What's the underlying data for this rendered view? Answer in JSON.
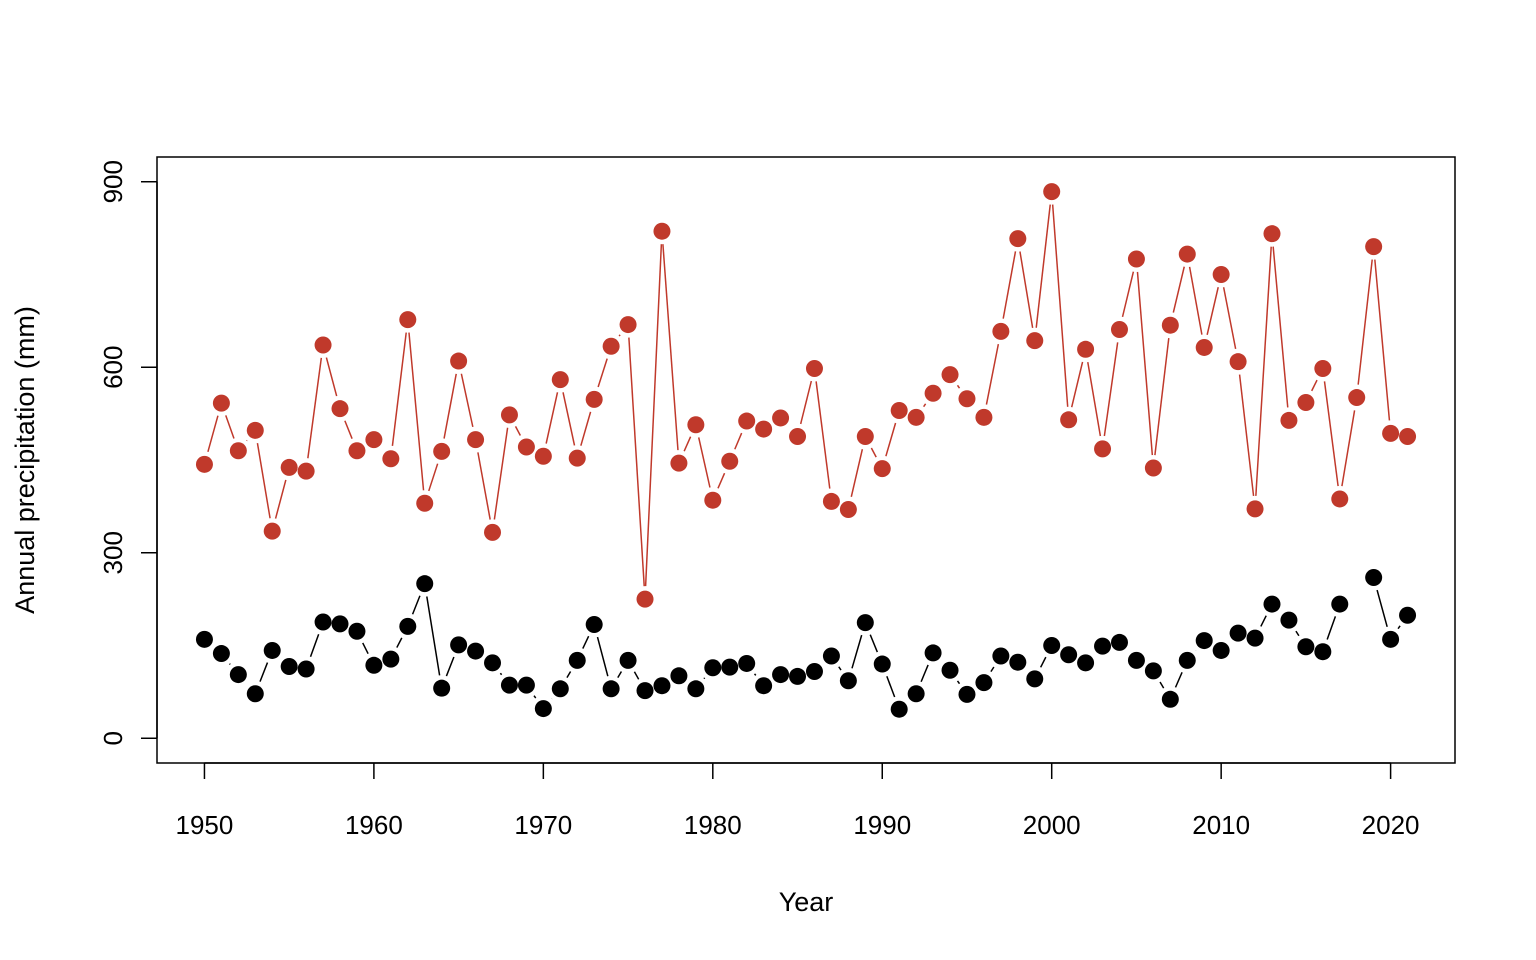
{
  "chart_data": {
    "type": "line",
    "title": "",
    "xlabel": "Year",
    "ylabel": "Annual precipitation (mm)",
    "xlim": [
      1947.2,
      1923.8
    ],
    "ylim": [
      -40,
      940
    ],
    "xticks": [
      "1950",
      "1960",
      "1970",
      "1980",
      "1990",
      "2000",
      "2010",
      "2020"
    ],
    "yticks": [
      "0",
      "300",
      "600",
      "900"
    ],
    "grid": false,
    "legend": "none",
    "x": [
      1950,
      1951,
      1952,
      1953,
      1954,
      1955,
      1956,
      1957,
      1958,
      1959,
      1960,
      1961,
      1962,
      1963,
      1964,
      1965,
      1966,
      1967,
      1968,
      1969,
      1970,
      1971,
      1972,
      1973,
      1974,
      1975,
      1976,
      1977,
      1978,
      1979,
      1980,
      1981,
      1982,
      1983,
      1984,
      1985,
      1986,
      1987,
      1988,
      1989,
      1990,
      1991,
      1992,
      1993,
      1994,
      1995,
      1996,
      1997,
      1998,
      1999,
      2000,
      2001,
      2002,
      2003,
      2004,
      2005,
      2006,
      2007,
      2008,
      2009,
      2010,
      2011,
      2012,
      2013,
      2014,
      2015,
      2016,
      2017,
      2018,
      2019,
      2020,
      2021
    ],
    "series": [
      {
        "color": "#c0392b",
        "values": [
          443,
          542,
          465,
          498,
          335,
          438,
          432,
          636,
          533,
          465,
          483,
          452,
          677,
          380,
          464,
          610,
          483,
          333,
          523,
          471,
          456,
          580,
          453,
          548,
          634,
          669,
          225,
          820,
          445,
          507,
          385,
          448,
          513,
          500,
          518,
          488,
          598,
          383,
          370,
          488,
          436,
          530,
          519,
          558,
          588,
          549,
          519,
          658,
          808,
          643,
          884,
          515,
          629,
          468,
          661,
          775,
          437,
          668,
          783,
          632,
          750,
          609,
          371,
          816,
          514,
          543,
          598,
          387,
          551,
          795,
          493,
          488
        ]
      },
      {
        "color": "#000000",
        "values": [
          160,
          137,
          103,
          72,
          142,
          116,
          112,
          188,
          185,
          173,
          118,
          128,
          181,
          250,
          81,
          151,
          141,
          122,
          86,
          86,
          48,
          80,
          126,
          184,
          80,
          126,
          77,
          85,
          101,
          80,
          114,
          115,
          121,
          85,
          103,
          100,
          108,
          133,
          93,
          187,
          120,
          47,
          72,
          138,
          110,
          71,
          90,
          133,
          123,
          96,
          150,
          135,
          122,
          149,
          155,
          126,
          109,
          63,
          126,
          158,
          142,
          170,
          162,
          217,
          191,
          148,
          140,
          217,
          null,
          260,
          160,
          199
        ]
      }
    ]
  }
}
